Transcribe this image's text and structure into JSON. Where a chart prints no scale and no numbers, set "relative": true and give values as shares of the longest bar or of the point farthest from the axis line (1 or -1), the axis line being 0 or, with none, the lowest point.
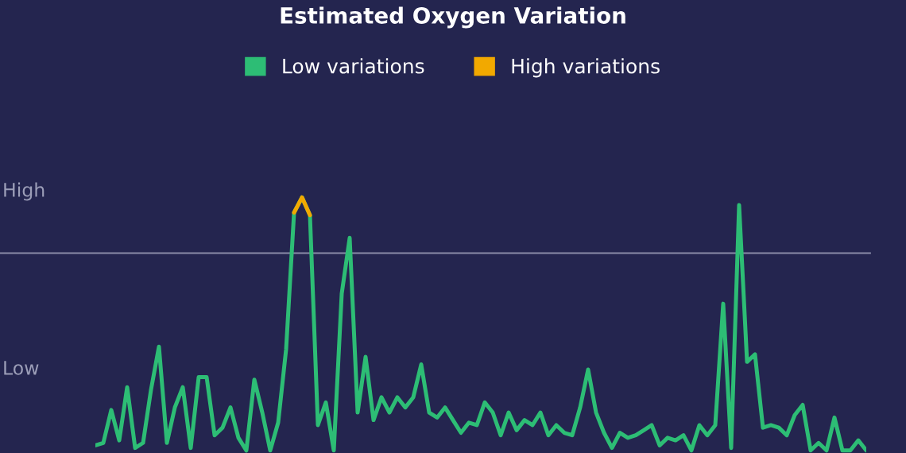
{
  "chart_data": {
    "type": "line",
    "title": "Estimated Oxygen Variation",
    "legend": "top",
    "relative": true,
    "annotations": [
      "High",
      "Low"
    ],
    "categories": [
      null,
      null,
      null,
      null,
      null,
      null,
      null,
      null,
      null,
      null,
      null,
      null,
      null,
      null,
      null,
      null,
      null,
      null,
      null,
      null,
      null,
      null,
      null,
      null,
      null,
      null,
      null,
      null,
      null,
      null,
      null,
      null,
      null,
      null,
      null,
      null,
      null,
      null,
      null,
      null,
      null,
      null,
      null,
      null,
      null,
      null,
      null,
      null,
      null,
      null,
      null,
      null,
      null,
      null,
      null,
      null,
      null,
      null,
      null,
      null,
      null,
      null,
      null,
      null,
      null,
      null,
      null,
      null,
      null,
      null,
      null,
      null,
      null,
      null,
      null,
      null,
      null,
      null,
      null,
      null,
      null,
      null,
      null,
      null,
      null,
      null,
      null,
      null,
      null,
      null,
      null,
      null,
      null,
      null,
      null,
      null,
      null,
      null
    ],
    "ref_lines": [
      {
        "axis": "y",
        "value": 0.78,
        "color": "#8a8ca8"
      }
    ],
    "series": [
      {
        "name": "Low variations",
        "color": "#2dbd75",
        "values": [
          0.02,
          0.03,
          0.16,
          0.04,
          0.25,
          0.01,
          0.03,
          0.24,
          0.41,
          0.03,
          0.17,
          0.25,
          0.01,
          0.29,
          0.29,
          0.06,
          0.09,
          0.17,
          0.05,
          0,
          0.28,
          0.15,
          0,
          0.11,
          0.4,
          0.94,
          1,
          0.93,
          0.1,
          0.19,
          0,
          0.62,
          0.84,
          0.15,
          0.37,
          0.12,
          0.21,
          0.15,
          0.21,
          0.17,
          0.21,
          0.34,
          0.15,
          0.13,
          0.17,
          0.12,
          0.07,
          0.11,
          0.1,
          0.19,
          0.15,
          0.06,
          0.15,
          0.08,
          0.12,
          0.1,
          0.15,
          0.06,
          0.1,
          0.07,
          0.06,
          0.17,
          0.32,
          0.15,
          0.07,
          0.01,
          0.07,
          0.05,
          0.06,
          0.08,
          0.1,
          0.02,
          0.05,
          0.04,
          0.06,
          0,
          0.1,
          0.06,
          0.1,
          0.58,
          0.01,
          0.97,
          0.35,
          0.38,
          0.09,
          0.1,
          0.09,
          0.06,
          0.14,
          0.18,
          0,
          0.03,
          0,
          0.13,
          0,
          0,
          0.04,
          0
        ]
      },
      {
        "name": "High variations",
        "color": "#f2a900",
        "values": [
          null,
          null,
          null,
          null,
          null,
          null,
          null,
          null,
          null,
          null,
          null,
          null,
          null,
          null,
          null,
          null,
          null,
          null,
          null,
          null,
          null,
          null,
          null,
          null,
          null,
          0.94,
          1,
          0.93,
          null,
          null,
          null,
          null,
          null,
          null,
          null,
          null,
          null,
          null,
          null,
          null,
          null,
          null,
          null,
          null,
          null,
          null,
          null,
          null,
          null,
          null,
          null,
          null,
          null,
          null,
          null,
          null,
          null,
          null,
          null,
          null,
          null,
          null,
          null,
          null,
          null,
          null,
          null,
          null,
          null,
          null,
          null,
          null,
          null,
          null,
          null,
          null,
          null,
          null,
          null,
          null,
          null,
          null,
          null,
          null,
          null,
          null,
          null,
          null,
          null,
          null,
          null,
          null,
          null,
          null,
          null,
          null,
          null,
          null
        ]
      }
    ]
  }
}
